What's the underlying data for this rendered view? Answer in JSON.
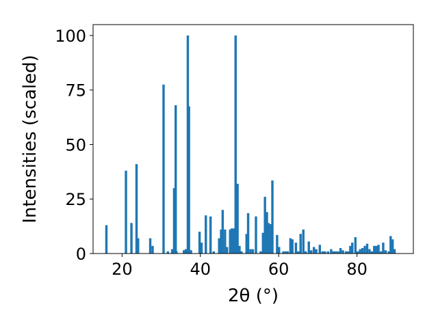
{
  "chart_data": {
    "type": "bar",
    "xlabel": "2θ (°)",
    "ylabel": "Intensities (scaled)",
    "xlim": [
      12.6,
      94.4
    ],
    "ylim": [
      0,
      105
    ],
    "xticks": [
      20,
      40,
      60,
      80
    ],
    "yticks": [
      0,
      25,
      50,
      75,
      100
    ],
    "bar_color": "#1f77b4",
    "bar_width": 0.6,
    "x": [
      16.0,
      21.0,
      22.4,
      23.7,
      24.1,
      27.2,
      27.8,
      30.6,
      31.7,
      32.8,
      33.3,
      33.7,
      33.9,
      35.8,
      36.3,
      36.8,
      37.1,
      37.6,
      39.8,
      40.3,
      41.4,
      42.6,
      43.4,
      44.8,
      45.3,
      45.7,
      46.3,
      46.8,
      47.6,
      48.0,
      48.5,
      49.0,
      49.5,
      50.0,
      50.5,
      51.8,
      52.2,
      52.8,
      53.4,
      54.2,
      55.4,
      56.0,
      56.5,
      57.0,
      57.4,
      58.0,
      58.4,
      59.6,
      60.1,
      61.2,
      61.8,
      62.3,
      63.0,
      63.5,
      64.4,
      65.0,
      65.6,
      66.3,
      66.9,
      67.7,
      68.3,
      69.0,
      69.6,
      70.5,
      71.2,
      71.8,
      72.6,
      73.4,
      74.0,
      74.6,
      75.2,
      75.8,
      76.4,
      77.2,
      77.8,
      78.3,
      78.8,
      79.6,
      80.2,
      80.8,
      81.4,
      82.0,
      82.6,
      83.2,
      83.8,
      84.4,
      85.0,
      85.5,
      86.1,
      86.7,
      87.3,
      88.1,
      88.6,
      89.1,
      89.6
    ],
    "values": [
      13,
      38,
      14,
      41,
      7,
      7,
      3.5,
      77.5,
      1,
      2,
      30,
      68,
      1,
      1.5,
      2,
      100,
      67.5,
      1.5,
      10,
      5,
      17.5,
      17,
      1,
      7,
      11,
      20,
      11,
      3,
      11,
      11.5,
      11.5,
      100,
      32,
      3.5,
      1,
      9,
      18.5,
      2,
      2,
      17,
      1,
      9.5,
      26,
      19,
      14,
      13.5,
      33.5,
      8.5,
      3,
      1,
      1,
      1,
      7,
      6.5,
      5,
      1,
      9,
      11,
      1,
      5.5,
      1.5,
      3,
      2,
      4,
      1,
      1,
      1,
      2,
      1,
      1,
      1,
      2.5,
      1.5,
      1,
      1,
      3.5,
      5,
      7.5,
      1,
      2,
      2.5,
      3.5,
      4.5,
      2,
      1,
      3.5,
      3.5,
      4,
      1,
      5,
      1.5,
      1,
      8,
      6.5,
      2
    ]
  }
}
